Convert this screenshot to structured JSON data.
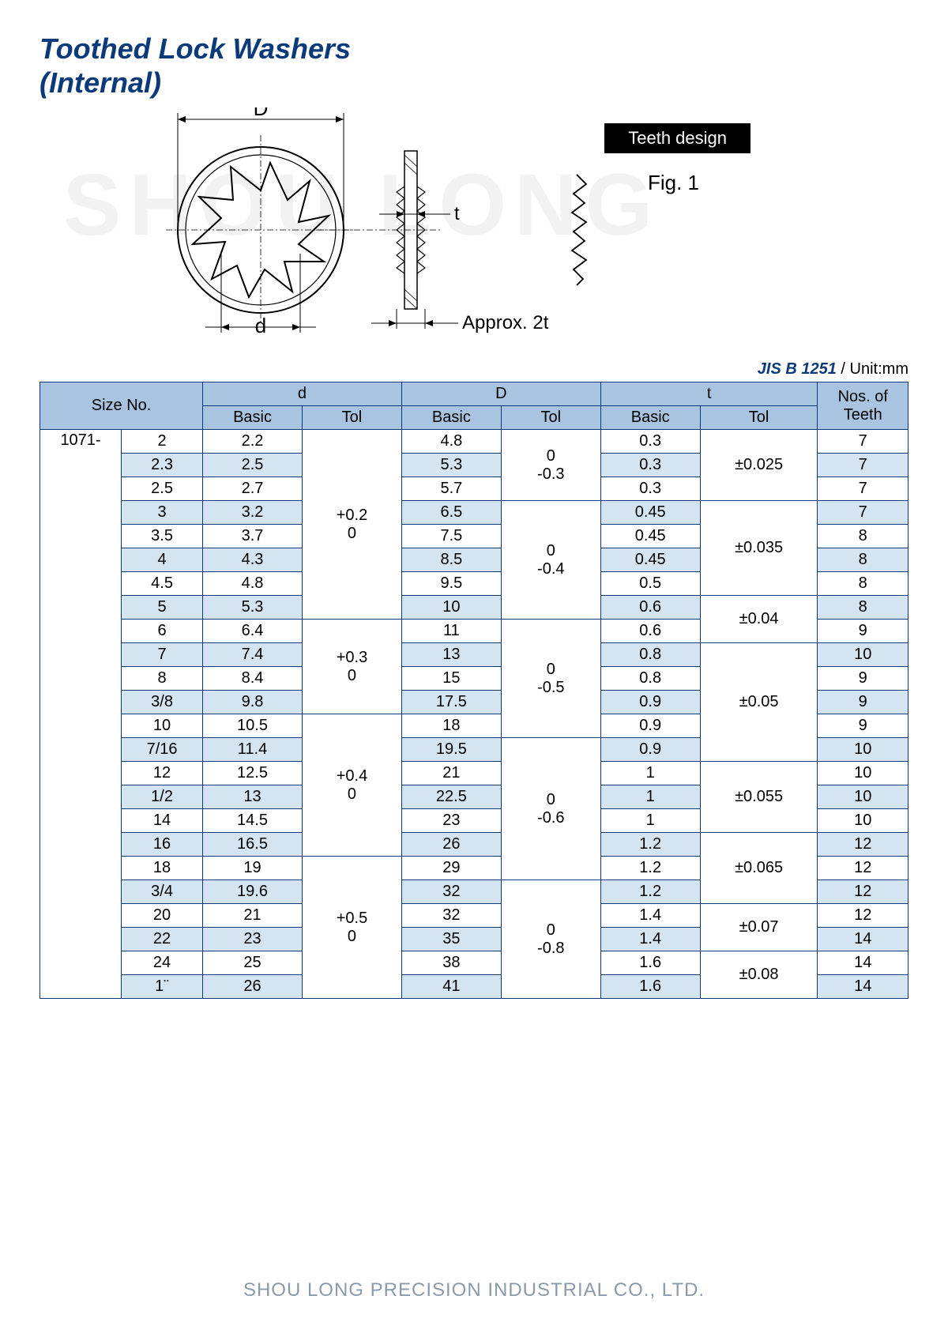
{
  "title_line1": "Toothed Lock Washers",
  "title_line2": "(Internal)",
  "watermark": "SHOU LONG",
  "teeth_design_label": "Teeth design",
  "fig_label": "Fig. 1",
  "diag_D": "D",
  "diag_d": "d",
  "diag_t": "t",
  "diag_approx": "Approx. 2t",
  "standard": "JIS B 1251",
  "unit": " / Unit:mm",
  "headers": {
    "size": "Size No.",
    "d": "d",
    "D_cap": "D",
    "t": "t",
    "teeth": "Nos. of Teeth",
    "basic": "Basic",
    "tol": "Tol"
  },
  "series": "1071-",
  "rows": [
    {
      "sz": "2",
      "d": "2.2",
      "D": "4.8",
      "t": "0.3",
      "n": "7",
      "alt": false
    },
    {
      "sz": "2.3",
      "d": "2.5",
      "D": "5.3",
      "t": "0.3",
      "n": "7",
      "alt": true
    },
    {
      "sz": "2.5",
      "d": "2.7",
      "D": "5.7",
      "t": "0.3",
      "n": "7",
      "alt": false
    },
    {
      "sz": "3",
      "d": "3.2",
      "D": "6.5",
      "t": "0.45",
      "n": "7",
      "alt": true
    },
    {
      "sz": "3.5",
      "d": "3.7",
      "D": "7.5",
      "t": "0.45",
      "n": "8",
      "alt": false
    },
    {
      "sz": "4",
      "d": "4.3",
      "D": "8.5",
      "t": "0.45",
      "n": "8",
      "alt": true
    },
    {
      "sz": "4.5",
      "d": "4.8",
      "D": "9.5",
      "t": "0.5",
      "n": "8",
      "alt": false
    },
    {
      "sz": "5",
      "d": "5.3",
      "D": "10",
      "t": "0.6",
      "n": "8",
      "alt": true
    },
    {
      "sz": "6",
      "d": "6.4",
      "D": "11",
      "t": "0.6",
      "n": "9",
      "alt": false
    },
    {
      "sz": "7",
      "d": "7.4",
      "D": "13",
      "t": "0.8",
      "n": "10",
      "alt": true
    },
    {
      "sz": "8",
      "d": "8.4",
      "D": "15",
      "t": "0.8",
      "n": "9",
      "alt": false
    },
    {
      "sz": "3/8",
      "d": "9.8",
      "D": "17.5",
      "t": "0.9",
      "n": "9",
      "alt": true
    },
    {
      "sz": "10",
      "d": "10.5",
      "D": "18",
      "t": "0.9",
      "n": "9",
      "alt": false
    },
    {
      "sz": "7/16",
      "d": "11.4",
      "D": "19.5",
      "t": "0.9",
      "n": "10",
      "alt": true
    },
    {
      "sz": "12",
      "d": "12.5",
      "D": "21",
      "t": "1",
      "n": "10",
      "alt": false
    },
    {
      "sz": "1/2",
      "d": "13",
      "D": "22.5",
      "t": "1",
      "n": "10",
      "alt": true
    },
    {
      "sz": "14",
      "d": "14.5",
      "D": "23",
      "t": "1",
      "n": "10",
      "alt": false
    },
    {
      "sz": "16",
      "d": "16.5",
      "D": "26",
      "t": "1.2",
      "n": "12",
      "alt": true
    },
    {
      "sz": "18",
      "d": "19",
      "D": "29",
      "t": "1.2",
      "n": "12",
      "alt": false
    },
    {
      "sz": "3/4",
      "d": "19.6",
      "D": "32",
      "t": "1.2",
      "n": "12",
      "alt": true
    },
    {
      "sz": "20",
      "d": "21",
      "D": "32",
      "t": "1.4",
      "n": "12",
      "alt": false
    },
    {
      "sz": "22",
      "d": "23",
      "D": "35",
      "t": "1.4",
      "n": "14",
      "alt": true
    },
    {
      "sz": "24",
      "d": "25",
      "D": "38",
      "t": "1.6",
      "n": "14",
      "alt": false
    },
    {
      "sz": "1¨",
      "d": "26",
      "D": "41",
      "t": "1.6",
      "n": "14",
      "alt": true
    }
  ],
  "d_tol_groups": [
    {
      "span": 8,
      "l1": "+0.2",
      "l2": "0"
    },
    {
      "span": 4,
      "l1": "+0.3",
      "l2": "0"
    },
    {
      "span": 6,
      "l1": "+0.4",
      "l2": "0"
    },
    {
      "span": 6,
      "l1": "+0.5",
      "l2": "0"
    }
  ],
  "D_tol_groups": [
    {
      "span": 3,
      "l1": "0",
      "l2": "-0.3"
    },
    {
      "span": 5,
      "l1": "0",
      "l2": "-0.4"
    },
    {
      "span": 5,
      "l1": "0",
      "l2": "-0.5"
    },
    {
      "span": 6,
      "l1": "0",
      "l2": "-0.6"
    },
    {
      "span": 5,
      "l1": "0",
      "l2": "-0.8"
    }
  ],
  "t_tol_groups": [
    {
      "span": 3,
      "v": "±0.025"
    },
    {
      "span": 4,
      "v": "±0.035"
    },
    {
      "span": 2,
      "v": "±0.04"
    },
    {
      "span": 5,
      "v": "±0.05"
    },
    {
      "span": 3,
      "v": "±0.055"
    },
    {
      "span": 3,
      "v": "±0.065"
    },
    {
      "span": 2,
      "v": "±0.07"
    },
    {
      "span": 2,
      "v": "±0.08"
    }
  ],
  "footer": "SHOU LONG PRECISION INDUSTRIAL CO., LTD."
}
